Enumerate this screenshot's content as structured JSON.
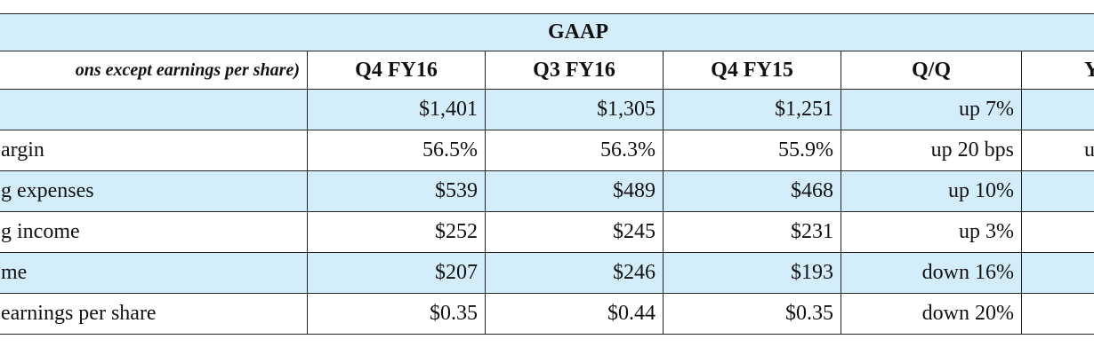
{
  "table": {
    "title": "GAAP",
    "header": [
      "ons except earnings per share)",
      "Q4 FY16",
      "Q3 FY16",
      "Q4 FY15",
      "Q/Q",
      "Y"
    ],
    "rows": [
      [
        null,
        "$1,401",
        "$1,305",
        "$1,251",
        "up 7%",
        null
      ],
      [
        "argin",
        "56.5%",
        "56.3%",
        "55.9%",
        "up 20 bps",
        "u"
      ],
      [
        "g expenses",
        "$539",
        "$489",
        "$468",
        "up 10%",
        null
      ],
      [
        "g income",
        "$252",
        "$245",
        "$231",
        "up 3%",
        null
      ],
      [
        "me",
        "$207",
        "$246",
        "$193",
        "down 16%",
        null
      ],
      [
        "earnings per share",
        "$0.35",
        "$0.44",
        "$0.35",
        "down 20%",
        null
      ]
    ]
  }
}
